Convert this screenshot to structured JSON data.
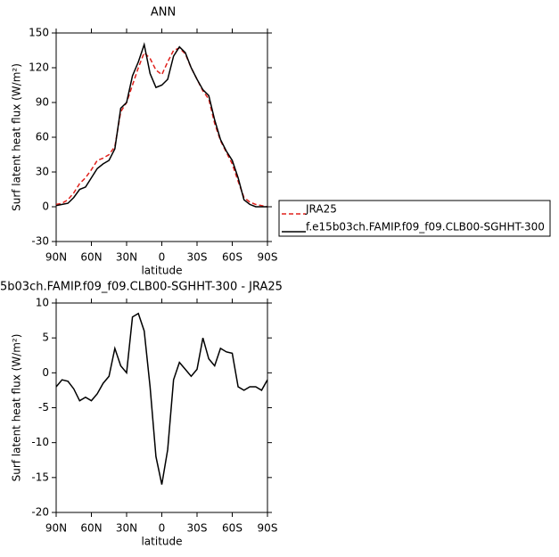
{
  "chart_data": [
    {
      "type": "line",
      "title": "ANN",
      "xlabel": "latitude",
      "ylabel": "Surf latent heat flux (W/m²)",
      "x": [
        90,
        85,
        80,
        75,
        70,
        65,
        60,
        55,
        50,
        45,
        40,
        35,
        30,
        25,
        20,
        15,
        10,
        5,
        0,
        -5,
        -10,
        -15,
        -20,
        -25,
        -30,
        -35,
        -40,
        -45,
        -50,
        -55,
        -60,
        -65,
        -70,
        -75,
        -80,
        -85,
        -90
      ],
      "series": [
        {
          "name": "JRA25",
          "color": "#e0201b",
          "dash": true,
          "values": [
            2,
            3,
            6,
            12,
            20,
            25,
            32,
            40,
            42,
            45,
            52,
            82,
            90,
            105,
            120,
            133,
            128,
            118,
            114,
            125,
            135,
            137,
            132,
            120,
            110,
            100,
            93,
            72,
            57,
            47,
            37,
            22,
            8,
            4,
            2,
            1,
            0
          ]
        },
        {
          "name": "f.e15b03ch.FAMIP.f09_f09.CLB00-SGHHT-300",
          "color": "#000000",
          "dash": false,
          "values": [
            1,
            2,
            3,
            8,
            15,
            17,
            25,
            33,
            37,
            40,
            50,
            85,
            90,
            113,
            125,
            140,
            115,
            103,
            105,
            110,
            130,
            138,
            133,
            120,
            110,
            101,
            96,
            75,
            58,
            48,
            40,
            25,
            6,
            2,
            0,
            0,
            0
          ]
        }
      ],
      "xlim": [
        90,
        -90
      ],
      "xticks": [
        {
          "value": 90,
          "label": "90N"
        },
        {
          "value": 60,
          "label": "60N"
        },
        {
          "value": 30,
          "label": "30N"
        },
        0,
        {
          "value": -30,
          "label": "30S"
        },
        {
          "value": -60,
          "label": "60S"
        },
        {
          "value": -90,
          "label": "90S"
        }
      ],
      "ylim": [
        -30,
        150
      ],
      "yticks": [
        -30,
        0,
        30,
        60,
        90,
        120,
        150
      ],
      "legend": "right"
    },
    {
      "type": "line",
      "title": "5b03ch.FAMIP.f09_f09.CLB00-SGHHT-300 - JRA25",
      "xlabel": "latitude",
      "ylabel": "Surf latent heat flux (W/m²)",
      "x": [
        90,
        85,
        80,
        75,
        70,
        65,
        60,
        55,
        50,
        45,
        40,
        35,
        30,
        25,
        20,
        15,
        10,
        5,
        0,
        -5,
        -10,
        -15,
        -20,
        -25,
        -30,
        -35,
        -40,
        -45,
        -50,
        -55,
        -60,
        -65,
        -70,
        -75,
        -80,
        -85,
        -90
      ],
      "series": [
        {
          "color": "#000000",
          "dash": false,
          "values": [
            -2,
            -1,
            -1.2,
            -2.3,
            -4,
            -3.5,
            -4,
            -3,
            -1.5,
            -0.5,
            3.5,
            1,
            0,
            8,
            8.5,
            6,
            -2,
            -12,
            -16,
            -11,
            -1,
            1.5,
            0.5,
            -0.5,
            0.5,
            5,
            2,
            1,
            3.5,
            3,
            2.8,
            -2,
            -2.5,
            -2,
            -2,
            -2.5,
            -1
          ]
        }
      ],
      "xlim": [
        90,
        -90
      ],
      "xticks": [
        {
          "value": 90,
          "label": "90N"
        },
        {
          "value": 60,
          "label": "60N"
        },
        {
          "value": 30,
          "label": "30N"
        },
        0,
        {
          "value": -30,
          "label": "30S"
        },
        {
          "value": -60,
          "label": "60S"
        },
        {
          "value": -90,
          "label": "90S"
        }
      ],
      "ylim": [
        -20,
        10
      ],
      "yticks": [
        -20,
        -15,
        -10,
        -5,
        0,
        5,
        10
      ]
    }
  ]
}
